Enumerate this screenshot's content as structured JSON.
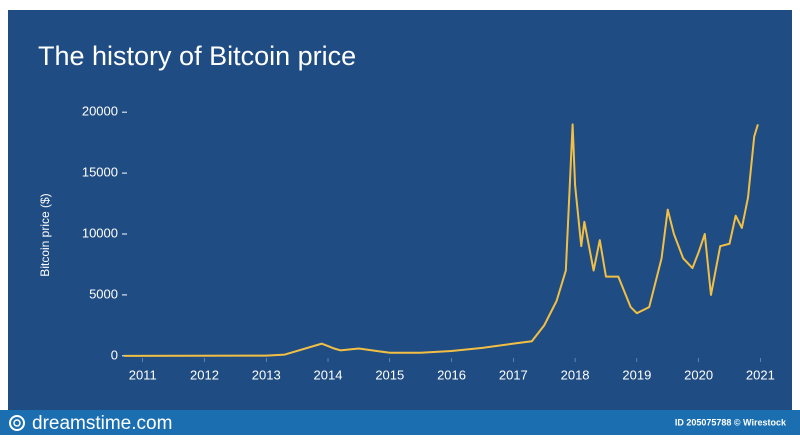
{
  "chart_data": {
    "type": "line",
    "title": "The history of Bitcoin price",
    "y_label": "Bitcoin price ($)",
    "x": [
      2010.7,
      2013.0,
      2013.3,
      2013.9,
      2014.0,
      2014.1,
      2014.2,
      2014.5,
      2015.0,
      2015.5,
      2016.0,
      2016.5,
      2017.0,
      2017.3,
      2017.5,
      2017.7,
      2017.85,
      2017.96,
      2018.0,
      2018.1,
      2018.15,
      2018.3,
      2018.4,
      2018.5,
      2018.7,
      2018.9,
      2019.0,
      2019.2,
      2019.4,
      2019.5,
      2019.6,
      2019.75,
      2019.9,
      2020.0,
      2020.1,
      2020.2,
      2020.35,
      2020.5,
      2020.6,
      2020.7,
      2020.8,
      2020.9,
      2020.96
    ],
    "series": [
      {
        "color": "#f2bf45",
        "values": [
          0,
          13,
          100,
          1000,
          800,
          600,
          450,
          600,
          250,
          250,
          400,
          650,
          1000,
          1200,
          2500,
          4500,
          7000,
          19000,
          14000,
          9000,
          11000,
          7000,
          9500,
          6500,
          6500,
          4000,
          3500,
          4000,
          8000,
          12000,
          10000,
          8000,
          7200,
          8500,
          10000,
          5000,
          9000,
          9200,
          11500,
          10500,
          13000,
          18000,
          19000
        ]
      }
    ],
    "xlim": [
      2010.6,
      2021.35
    ],
    "xticks": [
      2011,
      2012,
      2013,
      2014,
      2015,
      2016,
      2017,
      2018,
      2019,
      2020,
      2021
    ],
    "ylim": [
      -1000,
      21000
    ],
    "yticks": [
      0,
      5000,
      10000,
      15000,
      20000
    ]
  },
  "footer": {
    "brand": "dreamstime.com",
    "credit": "ID 205075788 © Wirestock"
  }
}
